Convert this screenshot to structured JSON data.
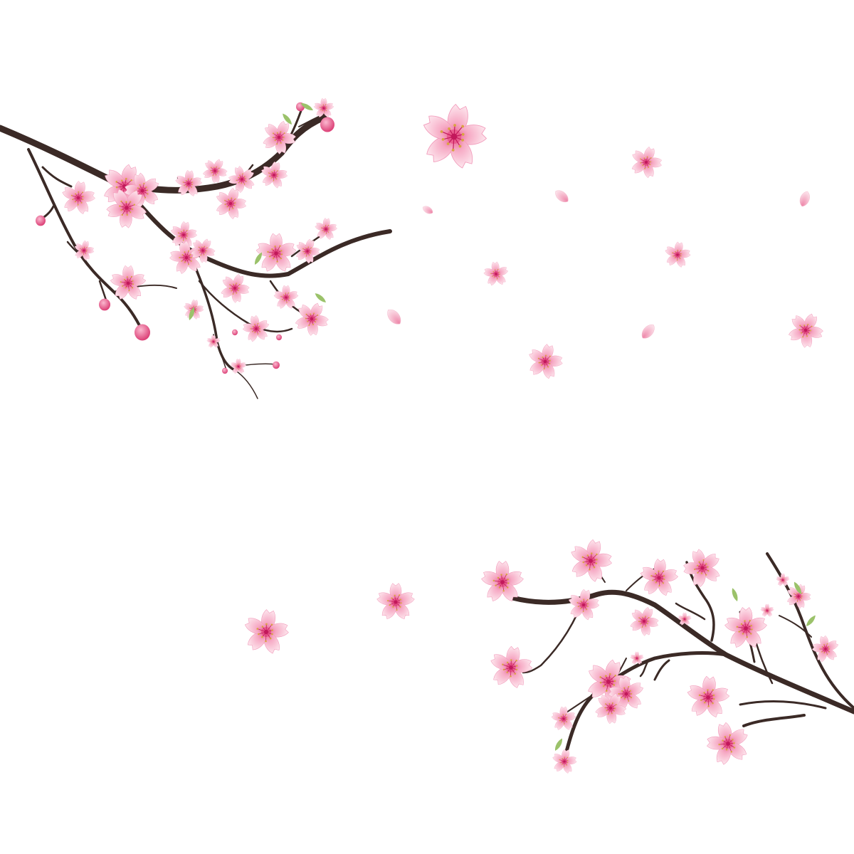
{
  "scene": {
    "background": "#ffffff",
    "branch_color": "#3b2a26",
    "petal_light": "#fbd3e0",
    "petal_mid": "#f6a9c4",
    "petal_deep": "#e8578a",
    "center_color": "#c2185b",
    "stamen_color": "#d9a441",
    "leaf_color": "#9bc26a"
  }
}
